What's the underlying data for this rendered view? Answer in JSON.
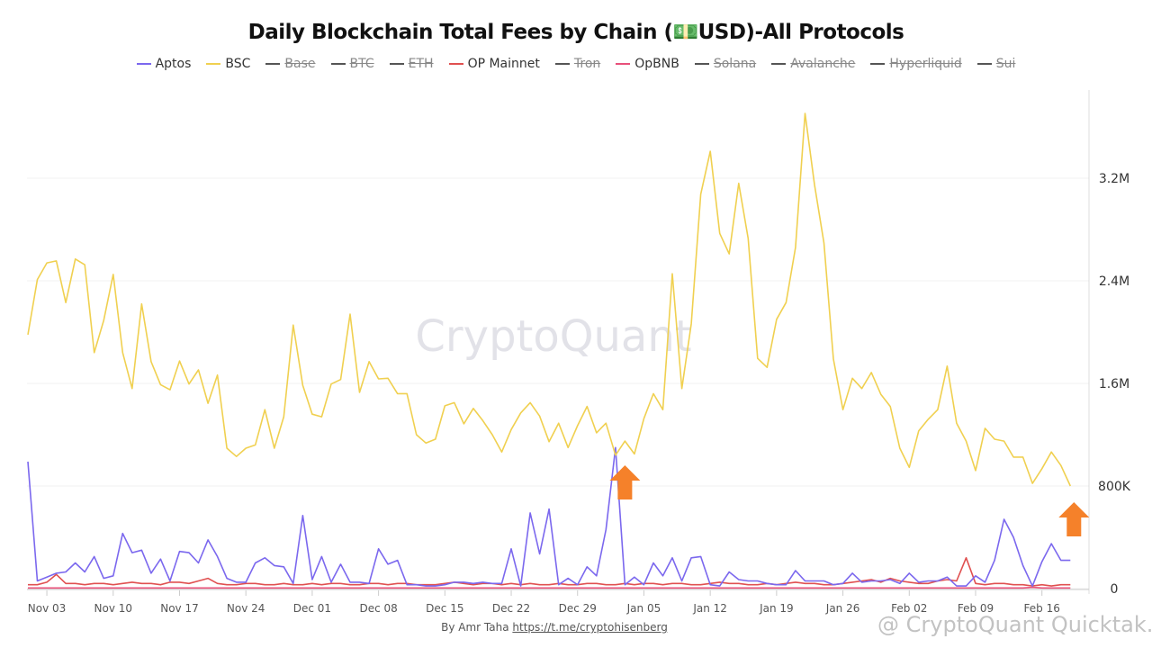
{
  "title": "Daily Blockchain Total Fees by Chain (💵USD)-All Protocols",
  "watermark": "CryptoQuant",
  "credit": {
    "prefix": "By Amr Taha ",
    "link": "https://t.me/cryptohisenberg"
  },
  "corner_watermark": "@ CryptoQuant Quicktak...",
  "chart_data": {
    "type": "line",
    "title": "Daily Blockchain Total Fees by Chain (💵USD)-All Protocols",
    "x_start": "2024-11-01",
    "x_end": "2025-02-19",
    "xticks": [
      "Nov 03",
      "Nov 10",
      "Nov 17",
      "Nov 24",
      "Dec 01",
      "Dec 08",
      "Dec 15",
      "Dec 22",
      "Dec 29",
      "Jan 05",
      "Jan 12",
      "Jan 19",
      "Jan 26",
      "Feb 02",
      "Feb 09",
      "Feb 16"
    ],
    "yticks": [
      {
        "v": 0,
        "label": "0"
      },
      {
        "v": 800,
        "label": "800K"
      },
      {
        "v": 1600,
        "label": "1.6M"
      },
      {
        "v": 2400,
        "label": "2.4M"
      },
      {
        "v": 3200,
        "label": "3.2M"
      }
    ],
    "ylim": [
      0,
      3900
    ],
    "y_unit": "thousand USD",
    "y_axis_side": "right",
    "legend_position": "top",
    "legend": [
      {
        "name": "Aptos",
        "color": "#7b68ee",
        "visible": true
      },
      {
        "name": "BSC",
        "color": "#f0d050",
        "visible": true
      },
      {
        "name": "Base",
        "color": "#555555",
        "visible": false
      },
      {
        "name": "BTC",
        "color": "#555555",
        "visible": false
      },
      {
        "name": "ETH",
        "color": "#555555",
        "visible": false
      },
      {
        "name": "OP Mainnet",
        "color": "#e05050",
        "visible": true
      },
      {
        "name": "Tron",
        "color": "#555555",
        "visible": false
      },
      {
        "name": "OpBNB",
        "color": "#e8507a",
        "visible": true
      },
      {
        "name": "Solana",
        "color": "#555555",
        "visible": false
      },
      {
        "name": "Avalanche",
        "color": "#555555",
        "visible": false
      },
      {
        "name": "Hyperliquid",
        "color": "#555555",
        "visible": false
      },
      {
        "name": "Sui",
        "color": "#555555",
        "visible": false
      }
    ],
    "series": [
      {
        "name": "BSC",
        "color": "#f0d050",
        "values": [
          1980,
          2410,
          2540,
          2555,
          2230,
          2570,
          2525,
          1840,
          2090,
          2450,
          1840,
          1560,
          2220,
          1770,
          1590,
          1550,
          1775,
          1595,
          1705,
          1445,
          1665,
          1095,
          1030,
          1095,
          1120,
          1395,
          1095,
          1340,
          2055,
          1585,
          1360,
          1340,
          1595,
          1630,
          2140,
          1530,
          1770,
          1635,
          1640,
          1520,
          1520,
          1200,
          1135,
          1165,
          1425,
          1450,
          1285,
          1405,
          1310,
          1200,
          1065,
          1240,
          1370,
          1450,
          1345,
          1145,
          1290,
          1100,
          1270,
          1420,
          1215,
          1290,
          1040,
          1150,
          1050,
          1325,
          1520,
          1395,
          2455,
          1560,
          2065,
          3075,
          3410,
          2770,
          2610,
          3160,
          2730,
          1795,
          1725,
          2100,
          2230,
          2660,
          3705,
          3150,
          2695,
          1790,
          1395,
          1640,
          1560,
          1685,
          1515,
          1420,
          1095,
          945,
          1230,
          1320,
          1395,
          1735,
          1290,
          1150,
          920,
          1250,
          1165,
          1150,
          1025,
          1025,
          820,
          935,
          1065,
          960,
          800
        ]
      },
      {
        "name": "Aptos",
        "color": "#7b68ee",
        "values": [
          990,
          60,
          90,
          120,
          130,
          200,
          130,
          250,
          80,
          100,
          430,
          280,
          300,
          120,
          230,
          60,
          290,
          280,
          200,
          380,
          250,
          80,
          50,
          50,
          200,
          240,
          180,
          170,
          40,
          570,
          70,
          250,
          50,
          190,
          50,
          50,
          40,
          310,
          190,
          220,
          30,
          30,
          20,
          20,
          30,
          50,
          50,
          40,
          50,
          40,
          40,
          310,
          20,
          590,
          270,
          620,
          30,
          80,
          30,
          170,
          100,
          460,
          1100,
          30,
          90,
          30,
          200,
          100,
          240,
          60,
          240,
          250,
          30,
          20,
          130,
          70,
          60,
          60,
          40,
          30,
          30,
          140,
          60,
          60,
          60,
          30,
          40,
          120,
          50,
          60,
          60,
          70,
          40,
          120,
          50,
          60,
          60,
          90,
          20,
          20,
          100,
          50,
          220,
          540,
          400,
          180,
          20,
          210,
          350,
          220,
          220
        ]
      },
      {
        "name": "OP Mainnet",
        "color": "#e05050",
        "values": [
          30,
          30,
          50,
          110,
          40,
          40,
          30,
          40,
          40,
          30,
          40,
          50,
          40,
          40,
          30,
          50,
          50,
          40,
          60,
          80,
          40,
          30,
          30,
          40,
          40,
          30,
          30,
          40,
          30,
          30,
          40,
          30,
          40,
          40,
          30,
          30,
          40,
          40,
          30,
          40,
          40,
          30,
          30,
          30,
          40,
          50,
          40,
          30,
          40,
          40,
          30,
          40,
          30,
          40,
          30,
          30,
          40,
          30,
          30,
          40,
          40,
          30,
          30,
          40,
          30,
          40,
          40,
          30,
          40,
          40,
          30,
          30,
          40,
          50,
          40,
          40,
          30,
          30,
          40,
          30,
          40,
          50,
          40,
          40,
          30,
          30,
          40,
          50,
          60,
          70,
          50,
          80,
          60,
          50,
          40,
          40,
          60,
          70,
          60,
          240,
          40,
          30,
          40,
          40,
          30,
          30,
          20,
          30,
          20,
          30,
          30
        ]
      },
      {
        "name": "OpBNB",
        "color": "#e8507a",
        "values": [
          5,
          5,
          5,
          5,
          5,
          5,
          5,
          5,
          5,
          5,
          5,
          5,
          5,
          5,
          5,
          5,
          5,
          5,
          5,
          5,
          5,
          5,
          5,
          5,
          5,
          5,
          5,
          5,
          5,
          5,
          5,
          5,
          5,
          5,
          5,
          5,
          5,
          5,
          5,
          5,
          5,
          5,
          5,
          5,
          5,
          5,
          5,
          5,
          5,
          5,
          5,
          5,
          5,
          5,
          5,
          5,
          5,
          5,
          5,
          5,
          5,
          5,
          5,
          5,
          5,
          5,
          5,
          5,
          5,
          5,
          5,
          5,
          5,
          5,
          5,
          5,
          5,
          5,
          5,
          5,
          5,
          5,
          5,
          5,
          5,
          5,
          5,
          5,
          5,
          5,
          5,
          5,
          5,
          5,
          5,
          5,
          5,
          5,
          5,
          5,
          5,
          5,
          5,
          5,
          5,
          5,
          10,
          5,
          5,
          5,
          5
        ]
      }
    ],
    "annotations": [
      {
        "type": "arrow-up",
        "color": "#f5812a",
        "at_index": 63
      },
      {
        "type": "arrow-up",
        "color": "#f5812a",
        "at_index": 110
      }
    ]
  }
}
